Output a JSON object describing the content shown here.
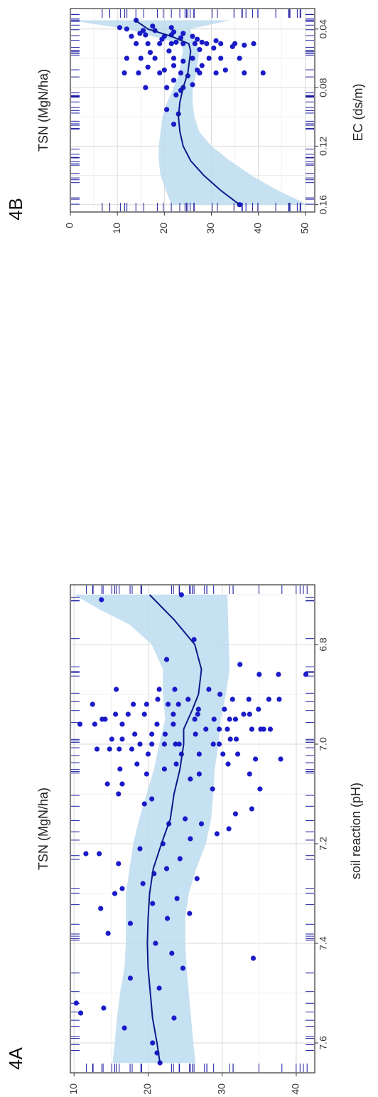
{
  "chart_data": [
    {
      "type": "scatter",
      "panel_label": "4A",
      "xlabel": "soil reaction (pH)",
      "ylabel": "TSN (MgN/ha)",
      "xlim": [
        6.68,
        7.66
      ],
      "ylim": [
        9.5,
        42.5
      ],
      "xticks": [
        6.8,
        7.0,
        7.2,
        7.4,
        7.6
      ],
      "xtick_labels": [
        "6.8",
        "7.0",
        "7.2",
        "7.4",
        "7.6"
      ],
      "yticks": [
        10,
        20,
        30,
        40
      ],
      "ytick_labels": [
        "10",
        "20",
        "30",
        "40"
      ],
      "grid": true,
      "rug": true,
      "colors": {
        "points": "#1a1ac8",
        "line": "#0a1a8c",
        "band": "#bcdcee",
        "rug": "#1a1aa0"
      },
      "smooth": [
        [
          6.7,
          20.2
        ],
        [
          6.75,
          23.5
        ],
        [
          6.8,
          26.3
        ],
        [
          6.85,
          27.2
        ],
        [
          6.9,
          26.8
        ],
        [
          6.93,
          26.0
        ],
        [
          6.97,
          24.8
        ],
        [
          7.0,
          24.8
        ],
        [
          7.05,
          24.3
        ],
        [
          7.1,
          23.5
        ],
        [
          7.15,
          23.0
        ],
        [
          7.2,
          21.8
        ],
        [
          7.25,
          20.7
        ],
        [
          7.3,
          20.2
        ],
        [
          7.35,
          20.0
        ],
        [
          7.4,
          19.9
        ],
        [
          7.45,
          20.0
        ],
        [
          7.5,
          20.3
        ],
        [
          7.55,
          20.6
        ],
        [
          7.6,
          21.2
        ],
        [
          7.64,
          21.6
        ]
      ],
      "band_upper": [
        [
          6.7,
          30.7
        ],
        [
          6.75,
          30.8
        ],
        [
          6.8,
          30.9
        ],
        [
          6.85,
          31.0
        ],
        [
          6.9,
          30.5
        ],
        [
          6.95,
          29.8
        ],
        [
          7.0,
          29.5
        ],
        [
          7.05,
          29.0
        ],
        [
          7.1,
          28.8
        ],
        [
          7.15,
          28.5
        ],
        [
          7.2,
          27.8
        ],
        [
          7.25,
          26.5
        ],
        [
          7.3,
          25.5
        ],
        [
          7.35,
          25.0
        ],
        [
          7.4,
          25.0
        ],
        [
          7.45,
          25.2
        ],
        [
          7.5,
          25.5
        ],
        [
          7.55,
          25.8
        ],
        [
          7.6,
          26.1
        ],
        [
          7.64,
          26.4
        ]
      ],
      "band_lower": [
        [
          6.7,
          10.0
        ],
        [
          6.73,
          13.5
        ],
        [
          6.76,
          17.5
        ],
        [
          6.8,
          20.5
        ],
        [
          6.85,
          22.0
        ],
        [
          6.9,
          22.0
        ],
        [
          6.95,
          22.3
        ],
        [
          7.0,
          21.5
        ],
        [
          7.05,
          20.8
        ],
        [
          7.1,
          19.8
        ],
        [
          7.15,
          18.8
        ],
        [
          7.2,
          18.0
        ],
        [
          7.25,
          17.5
        ],
        [
          7.3,
          17.0
        ],
        [
          7.35,
          17.0
        ],
        [
          7.4,
          17.0
        ],
        [
          7.45,
          16.8
        ],
        [
          7.5,
          16.2
        ],
        [
          7.55,
          15.8
        ],
        [
          7.6,
          15.5
        ],
        [
          7.64,
          15.2
        ]
      ],
      "points": [
        [
          6.7,
          24.5
        ],
        [
          6.71,
          13.7
        ],
        [
          6.79,
          26.2
        ],
        [
          6.83,
          22.5
        ],
        [
          6.84,
          32.4
        ],
        [
          6.86,
          41.3
        ],
        [
          6.86,
          37.6
        ],
        [
          6.86,
          35.0
        ],
        [
          6.89,
          23.6
        ],
        [
          6.89,
          21.5
        ],
        [
          6.89,
          15.7
        ],
        [
          6.89,
          28.2
        ],
        [
          6.9,
          29.7
        ],
        [
          6.91,
          31.4
        ],
        [
          6.91,
          25.4
        ],
        [
          6.91,
          21.3
        ],
        [
          6.91,
          33.6
        ],
        [
          6.91,
          37.7
        ],
        [
          6.91,
          36.3
        ],
        [
          6.92,
          24.1
        ],
        [
          6.92,
          22.7
        ],
        [
          6.92,
          19.8
        ],
        [
          6.92,
          18.0
        ],
        [
          6.92,
          12.5
        ],
        [
          6.93,
          30.3
        ],
        [
          6.93,
          26.8
        ],
        [
          6.93,
          34.9
        ],
        [
          6.94,
          23.4
        ],
        [
          6.94,
          26.7
        ],
        [
          6.94,
          33.7
        ],
        [
          6.94,
          32.9
        ],
        [
          6.94,
          19.5
        ],
        [
          6.94,
          17.3
        ],
        [
          6.94,
          15.6
        ],
        [
          6.95,
          14.2
        ],
        [
          6.95,
          13.8
        ],
        [
          6.95,
          26.3
        ],
        [
          6.95,
          28.9
        ],
        [
          6.95,
          31.0
        ],
        [
          6.95,
          31.8
        ],
        [
          6.96,
          23.4
        ],
        [
          6.96,
          21.2
        ],
        [
          6.96,
          16.5
        ],
        [
          6.96,
          12.8
        ],
        [
          6.96,
          10.8
        ],
        [
          6.97,
          30.7
        ],
        [
          6.97,
          35.2
        ],
        [
          6.97,
          36.5
        ],
        [
          6.97,
          35.6
        ],
        [
          6.97,
          34.0
        ],
        [
          6.97,
          29.6
        ],
        [
          6.97,
          27.8
        ],
        [
          6.98,
          26.4
        ],
        [
          6.98,
          22.3
        ],
        [
          6.98,
          20.5
        ],
        [
          6.98,
          18.2
        ],
        [
          6.99,
          16.5
        ],
        [
          6.99,
          15.1
        ],
        [
          6.99,
          31.1
        ],
        [
          6.99,
          31.9
        ],
        [
          7.0,
          29.6
        ],
        [
          7.0,
          28.8
        ],
        [
          7.0,
          24.2
        ],
        [
          7.0,
          23.7
        ],
        [
          7.0,
          22.2
        ],
        [
          7.0,
          20.5
        ],
        [
          7.0,
          18.9
        ],
        [
          7.01,
          17.8
        ],
        [
          7.01,
          16.1
        ],
        [
          7.01,
          14.8
        ],
        [
          7.01,
          13.1
        ],
        [
          7.02,
          30.1
        ],
        [
          7.02,
          32.1
        ],
        [
          7.02,
          26.9
        ],
        [
          7.02,
          24.5
        ],
        [
          7.02,
          20.0
        ],
        [
          7.03,
          34.5
        ],
        [
          7.03,
          37.9
        ],
        [
          7.04,
          30.8
        ],
        [
          7.04,
          23.8
        ],
        [
          7.04,
          18.5
        ],
        [
          7.05,
          22.2
        ],
        [
          7.05,
          16.2
        ],
        [
          7.06,
          33.7
        ],
        [
          7.06,
          26.9
        ],
        [
          7.06,
          19.8
        ],
        [
          7.07,
          25.7
        ],
        [
          7.08,
          16.5
        ],
        [
          7.08,
          14.5
        ],
        [
          7.09,
          35.1
        ],
        [
          7.09,
          28.7
        ],
        [
          7.1,
          16.0
        ],
        [
          7.11,
          20.5
        ],
        [
          7.12,
          19.5
        ],
        [
          7.13,
          34.0
        ],
        [
          7.14,
          31.8
        ],
        [
          7.15,
          25.0
        ],
        [
          7.16,
          27.2
        ],
        [
          7.16,
          22.8
        ],
        [
          7.17,
          30.9
        ],
        [
          7.18,
          29.3
        ],
        [
          7.19,
          25.7
        ],
        [
          7.2,
          22.0
        ],
        [
          7.21,
          18.9
        ],
        [
          7.22,
          13.4
        ],
        [
          7.22,
          11.6
        ],
        [
          7.23,
          24.3
        ],
        [
          7.24,
          16.0
        ],
        [
          7.25,
          22.5
        ],
        [
          7.26,
          20.8
        ],
        [
          7.27,
          26.6
        ],
        [
          7.28,
          19.3
        ],
        [
          7.29,
          16.5
        ],
        [
          7.3,
          15.5
        ],
        [
          7.31,
          23.9
        ],
        [
          7.32,
          20.6
        ],
        [
          7.33,
          13.6
        ],
        [
          7.34,
          25.6
        ],
        [
          7.35,
          22.6
        ],
        [
          7.36,
          17.6
        ],
        [
          7.38,
          14.6
        ],
        [
          7.4,
          21.0
        ],
        [
          7.42,
          23.2
        ],
        [
          7.43,
          34.2
        ],
        [
          7.45,
          24.7
        ],
        [
          7.47,
          17.6
        ],
        [
          7.49,
          21.5
        ],
        [
          7.52,
          10.3
        ],
        [
          7.53,
          14.0
        ],
        [
          7.54,
          10.9
        ],
        [
          7.55,
          23.5
        ],
        [
          7.57,
          16.8
        ],
        [
          7.6,
          20.6
        ],
        [
          7.62,
          21.2
        ],
        [
          7.64,
          21.6
        ]
      ]
    },
    {
      "type": "scatter",
      "panel_label": "4B",
      "xlabel": "EC (ds/m)",
      "ylabel": "TSN (MgN/ha)",
      "xlim": [
        0.026,
        0.165
      ],
      "ylim": [
        0,
        52
      ],
      "xticks": [
        0.04,
        0.08,
        0.12,
        0.16
      ],
      "xtick_labels": [
        "0.04",
        "0.08",
        "0.12",
        "0.16"
      ],
      "yticks": [
        0,
        10,
        20,
        30,
        40,
        50
      ],
      "ytick_labels": [
        "0",
        "10",
        "20",
        "30",
        "40",
        "50"
      ],
      "grid": true,
      "rug": true,
      "colors": {
        "points": "#1a1ac8",
        "line": "#0a1a8c",
        "band": "#bcdcee",
        "rug": "#1a1aa0"
      },
      "smooth": [
        [
          0.034,
          13.8
        ],
        [
          0.04,
          16.5
        ],
        [
          0.045,
          21.5
        ],
        [
          0.05,
          25.2
        ],
        [
          0.055,
          25.6
        ],
        [
          0.06,
          25.4
        ],
        [
          0.07,
          25.0
        ],
        [
          0.08,
          24.0
        ],
        [
          0.09,
          23.3
        ],
        [
          0.1,
          23.0
        ],
        [
          0.11,
          23.3
        ],
        [
          0.12,
          24.0
        ],
        [
          0.13,
          25.6
        ],
        [
          0.14,
          28.4
        ],
        [
          0.15,
          31.9
        ],
        [
          0.16,
          36.0
        ]
      ],
      "band_upper": [
        [
          0.034,
          34.0
        ],
        [
          0.04,
          25.5
        ],
        [
          0.045,
          26.0
        ],
        [
          0.05,
          27.0
        ],
        [
          0.055,
          27.4
        ],
        [
          0.06,
          27.2
        ],
        [
          0.07,
          26.8
        ],
        [
          0.08,
          26.0
        ],
        [
          0.09,
          26.0
        ],
        [
          0.1,
          26.4
        ],
        [
          0.11,
          27.4
        ],
        [
          0.12,
          30.0
        ],
        [
          0.13,
          34.0
        ],
        [
          0.14,
          38.5
        ],
        [
          0.15,
          44.0
        ],
        [
          0.16,
          50.5
        ]
      ],
      "band_lower": [
        [
          0.034,
          0.0
        ],
        [
          0.038,
          8.0
        ],
        [
          0.04,
          12.0
        ],
        [
          0.045,
          17.5
        ],
        [
          0.05,
          23.5
        ],
        [
          0.055,
          24.0
        ],
        [
          0.06,
          23.6
        ],
        [
          0.07,
          23.2
        ],
        [
          0.08,
          22.0
        ],
        [
          0.09,
          20.6
        ],
        [
          0.1,
          19.6
        ],
        [
          0.11,
          19.2
        ],
        [
          0.12,
          18.8
        ],
        [
          0.13,
          18.8
        ],
        [
          0.14,
          19.2
        ],
        [
          0.15,
          20.3
        ],
        [
          0.16,
          21.5
        ]
      ],
      "points": [
        [
          0.034,
          14.0
        ],
        [
          0.038,
          17.5
        ],
        [
          0.039,
          10.5
        ],
        [
          0.039,
          21.5
        ],
        [
          0.04,
          12.0
        ],
        [
          0.041,
          15.5
        ],
        [
          0.041,
          18.0
        ],
        [
          0.042,
          22.0
        ],
        [
          0.043,
          14.8
        ],
        [
          0.043,
          24.0
        ],
        [
          0.044,
          16.0
        ],
        [
          0.044,
          21.5
        ],
        [
          0.045,
          26.0
        ],
        [
          0.045,
          20.0
        ],
        [
          0.045,
          13.0
        ],
        [
          0.046,
          23.5
        ],
        [
          0.047,
          27.0
        ],
        [
          0.047,
          19.5
        ],
        [
          0.048,
          31.0
        ],
        [
          0.049,
          28.0
        ],
        [
          0.049,
          22.5
        ],
        [
          0.05,
          39.0
        ],
        [
          0.05,
          35.0
        ],
        [
          0.05,
          32.0
        ],
        [
          0.05,
          29.0
        ],
        [
          0.05,
          26.5
        ],
        [
          0.05,
          24.0
        ],
        [
          0.05,
          21.5
        ],
        [
          0.05,
          19.0
        ],
        [
          0.05,
          16.5
        ],
        [
          0.05,
          14.0
        ],
        [
          0.051,
          37.0
        ],
        [
          0.052,
          34.5
        ],
        [
          0.053,
          30.5
        ],
        [
          0.054,
          27.5
        ],
        [
          0.055,
          21.0
        ],
        [
          0.056,
          17.0
        ],
        [
          0.06,
          36.0
        ],
        [
          0.06,
          32.0
        ],
        [
          0.06,
          29.5
        ],
        [
          0.06,
          26.0
        ],
        [
          0.06,
          22.0
        ],
        [
          0.06,
          18.0
        ],
        [
          0.06,
          15.0
        ],
        [
          0.06,
          12.0
        ],
        [
          0.062,
          24.0
        ],
        [
          0.065,
          28.0
        ],
        [
          0.065,
          22.0
        ],
        [
          0.066,
          16.5
        ],
        [
          0.068,
          33.0
        ],
        [
          0.068,
          27.0
        ],
        [
          0.068,
          20.0
        ],
        [
          0.07,
          41.0
        ],
        [
          0.07,
          37.0
        ],
        [
          0.07,
          31.0
        ],
        [
          0.07,
          27.5
        ],
        [
          0.07,
          23.5
        ],
        [
          0.07,
          19.0
        ],
        [
          0.07,
          14.5
        ],
        [
          0.07,
          11.5
        ],
        [
          0.072,
          25.0
        ],
        [
          0.075,
          22.0
        ],
        [
          0.078,
          26.0
        ],
        [
          0.08,
          24.0
        ],
        [
          0.08,
          20.5
        ],
        [
          0.08,
          16.0
        ],
        [
          0.082,
          23.5
        ],
        [
          0.085,
          22.5
        ],
        [
          0.095,
          20.5
        ],
        [
          0.098,
          23.0
        ],
        [
          0.105,
          22.0
        ],
        [
          0.16,
          36.0
        ]
      ]
    }
  ]
}
